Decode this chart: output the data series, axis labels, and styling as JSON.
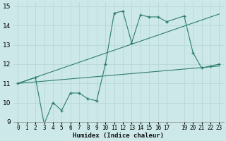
{
  "background_color": "#cce8e8",
  "grid_color": "#b8d8d8",
  "line_color": "#2e7d6e",
  "xlabel": "Humidex (Indice chaleur)",
  "xlim": [
    -0.5,
    23.5
  ],
  "ylim": [
    9,
    15.2
  ],
  "yticks": [
    9,
    10,
    11,
    12,
    13,
    14,
    15
  ],
  "xticks": [
    0,
    1,
    2,
    3,
    4,
    5,
    6,
    7,
    8,
    9,
    10,
    11,
    12,
    13,
    14,
    15,
    16,
    17,
    19,
    20,
    21,
    22,
    23
  ],
  "line1_x": [
    0,
    2,
    3,
    4,
    5,
    6,
    7,
    8,
    9,
    10,
    11,
    12,
    13,
    14,
    15,
    16,
    17,
    19,
    20,
    21,
    22,
    23
  ],
  "line1_y": [
    11.0,
    11.3,
    8.9,
    10.0,
    9.6,
    10.5,
    10.5,
    10.2,
    10.1,
    12.0,
    14.65,
    14.75,
    13.1,
    14.55,
    14.45,
    14.45,
    14.2,
    14.5,
    12.6,
    11.8,
    11.9,
    12.0
  ],
  "line2_x": [
    0,
    23
  ],
  "line2_y": [
    11.0,
    11.9
  ],
  "line3_x": [
    0,
    23
  ],
  "line3_y": [
    11.0,
    14.6
  ]
}
